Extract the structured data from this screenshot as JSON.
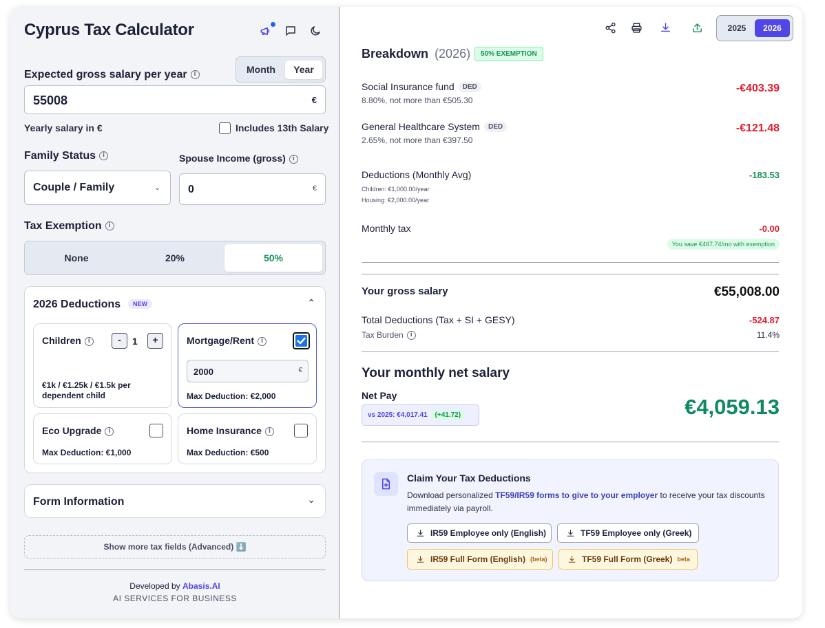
{
  "app": {
    "title": "Cyprus Tax Calculator"
  },
  "salary": {
    "label": "Expected gross salary per year",
    "period_options": [
      "Month",
      "Year"
    ],
    "value": "55008",
    "currency": "€",
    "hint": "Yearly salary in €",
    "thirteenth_label": "Includes 13th Salary"
  },
  "family": {
    "label": "Family Status",
    "selected": "Couple / Family",
    "spouse_label": "Spouse Income (gross)",
    "spouse_value": "0",
    "currency": "€"
  },
  "exemption": {
    "label": "Tax Exemption",
    "options": [
      "None",
      "20%",
      "50%"
    ]
  },
  "deductions": {
    "title": "2026 Deductions",
    "badge": "NEW",
    "children": {
      "label": "Children",
      "count": "1",
      "minus": "-",
      "plus": "+",
      "note": "€1k / €1.25k / €1.5k per dependent child"
    },
    "mortgage": {
      "label": "Mortgage/Rent",
      "value": "2000",
      "currency": "€",
      "max": "Max Deduction: €2,000"
    },
    "eco": {
      "label": "Eco Upgrade",
      "max": "Max Deduction: €1,000"
    },
    "home": {
      "label": "Home Insurance",
      "max": "Max Deduction: €500"
    }
  },
  "form_info": {
    "title": "Form Information"
  },
  "advanced": {
    "label": "Show more tax fields (Advanced) ⬇️"
  },
  "footer": {
    "developed_by": "Developed by",
    "company": "Abasis.AI",
    "tagline": "AI SERVICES FOR BUSINESS"
  },
  "years": [
    "2025",
    "2026"
  ],
  "breakdown": {
    "title": "Breakdown",
    "year": "(2026)",
    "exemption_badge": "50% EXEMPTION",
    "items": [
      {
        "label": "Social Insurance fund",
        "tag": "DED",
        "sub": "8.80%, not more than €505.30",
        "amount": "-€403.39"
      },
      {
        "label": "General Healthcare System",
        "tag": "DED",
        "sub": "2.65%, not more than €397.50",
        "amount": "-€121.48"
      }
    ],
    "deductions_avg": {
      "label": "Deductions (Monthly Avg)",
      "children": "Children: €1,000.00/year",
      "housing": "Housing: €2,000.00/year",
      "amount": "-183.53"
    },
    "monthly_tax": {
      "label": "Monthly tax",
      "amount": "-0.00",
      "save_note": "You save €467.74/mo with exemption"
    }
  },
  "summary": {
    "gross_label": "Your gross salary",
    "gross_value": "€55,008.00",
    "total_ded_label": "Total Deductions (Tax + SI + GESY)",
    "total_ded_value": "-524.87",
    "burden_label": "Tax Burden",
    "burden_value": "11.4%",
    "net_title": "Your monthly net salary",
    "net_label": "Net Pay",
    "vs_label": "vs 2025: €4,017.41",
    "vs_diff": "(+41.72)",
    "net_value": "€4,059.13"
  },
  "claim": {
    "title": "Claim Your Tax Deductions",
    "text_pre": "Download personalized ",
    "text_link": "TF59/IR59 forms to give to your employer",
    "text_post": " to receive your tax discounts immediately via payroll.",
    "buttons": [
      {
        "label": "IR59 Employee only (English)"
      },
      {
        "label": "TF59 Employee only (Greek)"
      },
      {
        "label": "IR59 Full Form (English)",
        "tag": "(beta)"
      },
      {
        "label": "TF59 Full Form (Greek)",
        "tag": "beta"
      }
    ]
  },
  "colors": {
    "accent": "#4f46e5",
    "red": "#e11d2e",
    "green": "#15935a",
    "net": "#0f8a5f"
  }
}
